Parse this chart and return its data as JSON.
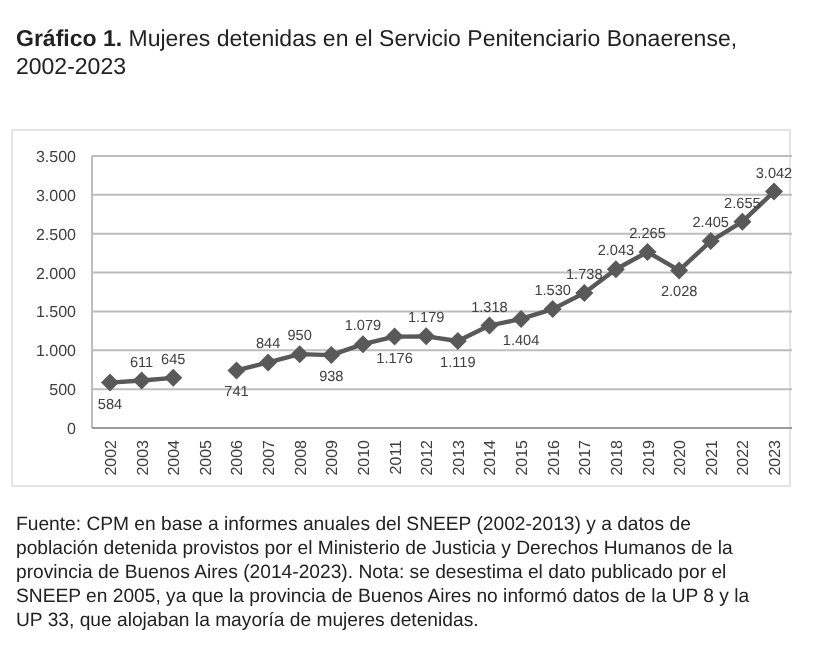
{
  "chart_data": {
    "type": "line",
    "title": "Gráfico 1. Mujeres detenidas en el Servicio Penitenciario Bonaerense, 2002-2023",
    "categories": [
      "2002",
      "2003",
      "2004",
      "2005",
      "2006",
      "2007",
      "2008",
      "2009",
      "2010",
      "2011",
      "2012",
      "2013",
      "2014",
      "2015",
      "2016",
      "2017",
      "2018",
      "2019",
      "2020",
      "2021",
      "2022",
      "2023"
    ],
    "series": [
      {
        "color": "#595959",
        "values": [
          584,
          611,
          645,
          null,
          741,
          844,
          950,
          938,
          1079,
          1176,
          1179,
          1119,
          1318,
          1404,
          1530,
          1738,
          2043,
          2265,
          2028,
          2405,
          2655,
          3042
        ],
        "value_labels": [
          "584",
          "611",
          "645",
          null,
          "741",
          "844",
          "950",
          "938",
          "1.079",
          "1.176",
          "1.179",
          "1.119",
          "1.318",
          "1.404",
          "1.530",
          "1.738",
          "2.043",
          "2.265",
          "2.028",
          "2.405",
          "2.655",
          "3.042"
        ]
      }
    ],
    "ylim": [
      0,
      3500
    ],
    "yticks": [
      0,
      {
        "value": 500,
        "label": "500"
      },
      {
        "value": 1000,
        "label": "1.000"
      },
      {
        "value": 1500,
        "label": "1.500"
      },
      {
        "value": 2000,
        "label": "2.000"
      },
      {
        "value": 2500,
        "label": "2.500"
      },
      {
        "value": 3000,
        "label": "3.000"
      },
      {
        "value": 3500,
        "label": "3.500"
      }
    ],
    "grid": "y",
    "marker": "diamond",
    "line_style": "solid",
    "annotations": [
      "Fuente: CPM en base a informes anuales del SNEEP (2002-2013) y a datos de población detenida provistos por el Ministerio de Justicia y Derechos Humanos de la provincia de Buenos Aires (2014-2023). Nota: se desestima el dato publicado por el SNEEP en 2005, ya que la provincia de Buenos Aires no informó datos de la UP 8 y la UP 33, que alojaban la mayoría de mujeres detenidas."
    ]
  }
}
